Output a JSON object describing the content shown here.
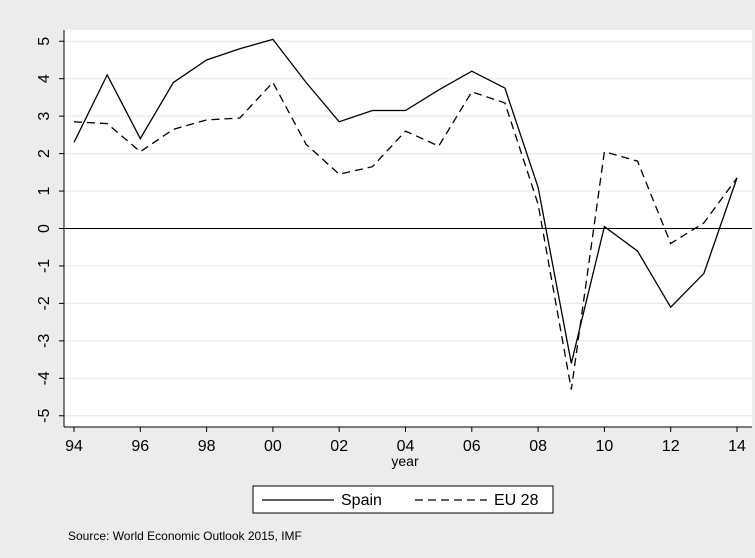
{
  "chart_data": {
    "type": "line",
    "title": "",
    "xlabel": "year",
    "ylabel": "",
    "x": [
      94,
      95,
      96,
      97,
      98,
      99,
      100,
      101,
      102,
      103,
      104,
      105,
      106,
      107,
      108,
      109,
      110,
      111,
      112,
      113,
      114
    ],
    "x_ticks": [
      94,
      96,
      98,
      100,
      102,
      104,
      106,
      108,
      110,
      112,
      114
    ],
    "x_tick_labels": [
      "94",
      "96",
      "98",
      "00",
      "02",
      "04",
      "06",
      "08",
      "10",
      "12",
      "14"
    ],
    "xlim": [
      94,
      114
    ],
    "y_ticks": [
      5,
      4,
      3,
      2,
      1,
      0,
      -1,
      -2,
      -3,
      -4,
      -5
    ],
    "y_tick_labels": [
      "5",
      "4",
      "3",
      "2",
      "1",
      "0",
      "-1",
      "-2",
      "-3",
      "-4",
      "-5"
    ],
    "ylim": [
      -5.3,
      5.3
    ],
    "grid": true,
    "reference_line": 0,
    "legend": {
      "position": "bottom"
    },
    "series": [
      {
        "name": "Spain",
        "line_style": "solid",
        "color": "#000000",
        "values": [
          2.3,
          4.1,
          2.4,
          3.9,
          4.5,
          4.8,
          5.05,
          3.9,
          2.85,
          3.15,
          3.15,
          3.7,
          4.2,
          3.75,
          1.1,
          -3.6,
          0.05,
          -0.6,
          -2.1,
          -1.2,
          1.35
        ]
      },
      {
        "name": "EU 28",
        "line_style": "dashed",
        "color": "#000000",
        "values": [
          2.85,
          2.8,
          2.05,
          2.65,
          2.9,
          2.95,
          3.9,
          2.25,
          1.45,
          1.65,
          2.6,
          2.2,
          3.65,
          3.35,
          0.65,
          -4.3,
          2.05,
          1.8,
          -0.4,
          0.15,
          1.35
        ]
      }
    ],
    "note": "Source: World Economic Outlook 2015, IMF"
  }
}
